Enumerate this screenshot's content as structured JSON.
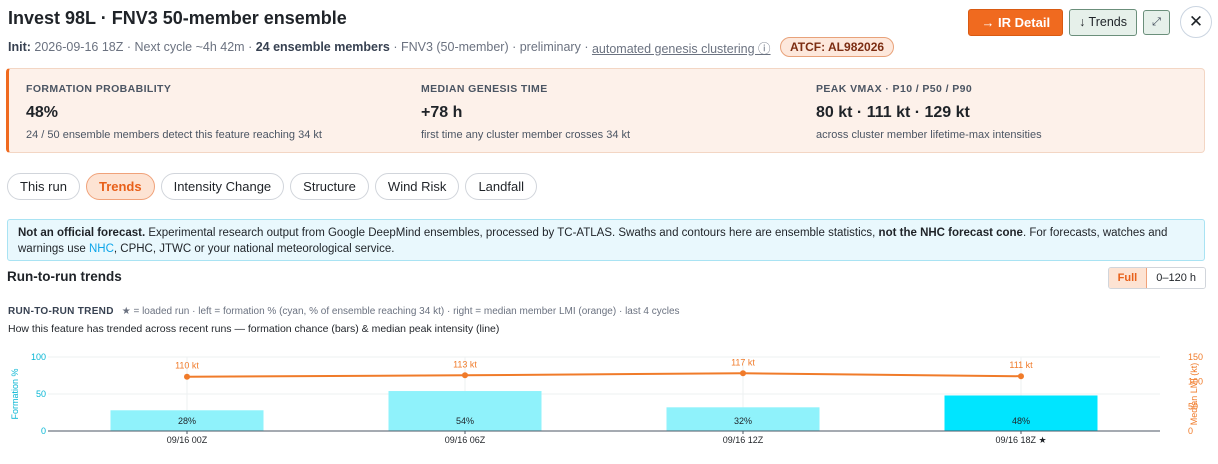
{
  "header": {
    "title": "Invest 98L · FNV3 50-member ensemble",
    "init_label": "Init:",
    "init_value": "2026-09-16 18Z",
    "next_cycle": "· Next cycle ~4h 42m ·",
    "members": "24 ensemble members",
    "model_note": "· FNV3 (50-member) · preliminary ·",
    "clustering_link": "automated genesis clustering ⓘ",
    "atcf": "ATCF: AL982026",
    "ir_button": "→ IR Detail",
    "trends_button": "↓ Trends",
    "expand_glyph": "⤢",
    "close_glyph": "✕"
  },
  "stats": [
    {
      "label": "FORMATION PROBABILITY",
      "value": "48%",
      "sub": "24 / 50 ensemble members detect this feature reaching 34 kt"
    },
    {
      "label": "MEDIAN GENESIS TIME",
      "value": "+78 h",
      "sub": "first time any cluster member crosses 34 kt"
    },
    {
      "label": "PEAK VMAX · P10 / P50 / P90",
      "value": "80 kt · 111 kt · 129 kt",
      "sub": "across cluster member lifetime-max intensities"
    }
  ],
  "tabs": [
    {
      "label": "This run",
      "active": false
    },
    {
      "label": "Trends",
      "active": true
    },
    {
      "label": "Intensity Change",
      "active": false
    },
    {
      "label": "Structure",
      "active": false
    },
    {
      "label": "Wind Risk",
      "active": false
    },
    {
      "label": "Landfall",
      "active": false
    }
  ],
  "notice": {
    "lead": "Not an official forecast.",
    "body1": " Experimental research output from Google DeepMind ensembles, processed by TC-ATLAS. Swaths and contours here are ensemble statistics, ",
    "bold2": "not the NHC forecast cone",
    "body2": ". For forecasts, watches and warnings use ",
    "nhc": "NHC",
    "body3": ", CPHC, JTWC or your national meteorological service."
  },
  "section": {
    "title": "Run-to-run trends",
    "toggle_full": "Full",
    "toggle_range": "0–120 h"
  },
  "chart_head": {
    "title": "RUN-TO-RUN TREND",
    "note": "★ = loaded run · left = formation % (cyan, % of ensemble reaching 34 kt) · right = median member LMI (orange) · last 4 cycles",
    "subtitle": "How this feature has trended across recent runs — formation chance (bars) & median peak intensity (line)"
  },
  "chart_data": {
    "type": "bar",
    "categories": [
      "09/16 00Z",
      "09/16 06Z",
      "09/16 12Z",
      "09/16 18Z ★"
    ],
    "series": [
      {
        "name": "formation %",
        "axis": "left",
        "type": "bar",
        "values": [
          28,
          54,
          32,
          48
        ],
        "labels": [
          "28%",
          "54%",
          "32%",
          "48%"
        ]
      },
      {
        "name": "median member LMI",
        "axis": "right",
        "type": "line",
        "values": [
          110,
          113,
          117,
          111
        ],
        "labels": [
          "110 kt",
          "113 kt",
          "117 kt",
          "111 kt"
        ]
      }
    ],
    "highlight_index": 3,
    "ylabel": "Formation %",
    "ylabel_right": "Median LMI (kt)",
    "ylim": [
      0,
      100
    ],
    "ylim_right": [
      0,
      150
    ],
    "yticks": [
      "0",
      "50",
      "100"
    ],
    "yticks_right": [
      "0",
      "50",
      "100",
      "150"
    ],
    "colors": {
      "bar": "#8ff2fb",
      "bar_highlight": "#00e5ff",
      "line": "#f07b2a",
      "left_axis": "#06b6d4",
      "right_axis": "#f07b2a"
    }
  }
}
